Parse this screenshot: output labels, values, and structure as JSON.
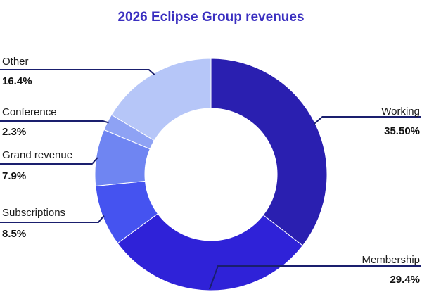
{
  "chart_data": {
    "type": "pie",
    "title": "2026 Eclipse Group revenues",
    "slices": [
      {
        "name": "Working",
        "value": 35.5,
        "label": "35.50%",
        "color": "#2a1fb0"
      },
      {
        "name": "Membership",
        "value": 29.4,
        "label": "29.4%",
        "color": "#2f22d8"
      },
      {
        "name": "Subscriptions",
        "value": 8.5,
        "label": "8.5%",
        "color": "#4553f0"
      },
      {
        "name": "Grand revenue",
        "value": 7.9,
        "label": "7.9%",
        "color": "#6f85f2"
      },
      {
        "name": "Conference",
        "value": 2.3,
        "label": "2.3%",
        "color": "#8ea2f4"
      },
      {
        "name": "Other",
        "value": 16.4,
        "label": "16.4%",
        "color": "#b6c6f8"
      }
    ],
    "legend": "none",
    "colors": {
      "title": "#3a2fc0",
      "leader": "#1a1f6e"
    }
  }
}
